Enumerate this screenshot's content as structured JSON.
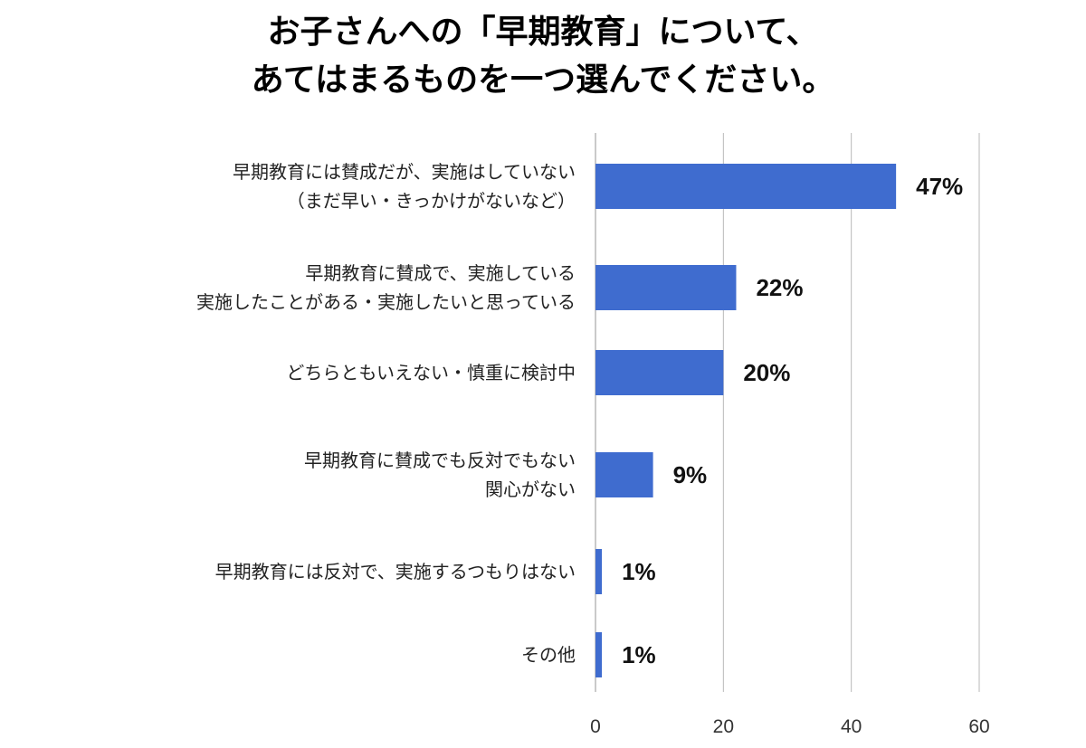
{
  "chart_data": {
    "type": "bar",
    "orientation": "horizontal",
    "title_lines": [
      "お子さんへの「早期教育」について、",
      "あてはまるものを一つ選んでください。"
    ],
    "categories": [
      [
        "早期教育には賛成だが、実施はしていない",
        "（まだ早い・きっかけがないなど）"
      ],
      [
        "早期教育に賛成で、実施している",
        "実施したことがある・実施したいと思っている"
      ],
      [
        "どちらともいえない・慎重に検討中"
      ],
      [
        "早期教育に賛成でも反対でもない",
        "関心がない"
      ],
      [
        "早期教育には反対で、実施するつもりはない"
      ],
      [
        "その他"
      ]
    ],
    "values": [
      47,
      22,
      20,
      9,
      1,
      1
    ],
    "data_labels": [
      "47%",
      "22%",
      "20%",
      "9%",
      "1%",
      "1%"
    ],
    "xlim": [
      0,
      60
    ],
    "xticks": [
      "0",
      "20",
      "40",
      "60"
    ],
    "grid": true,
    "bar_color": "#3f6ccf",
    "grid_color": "#b8b8b8"
  }
}
